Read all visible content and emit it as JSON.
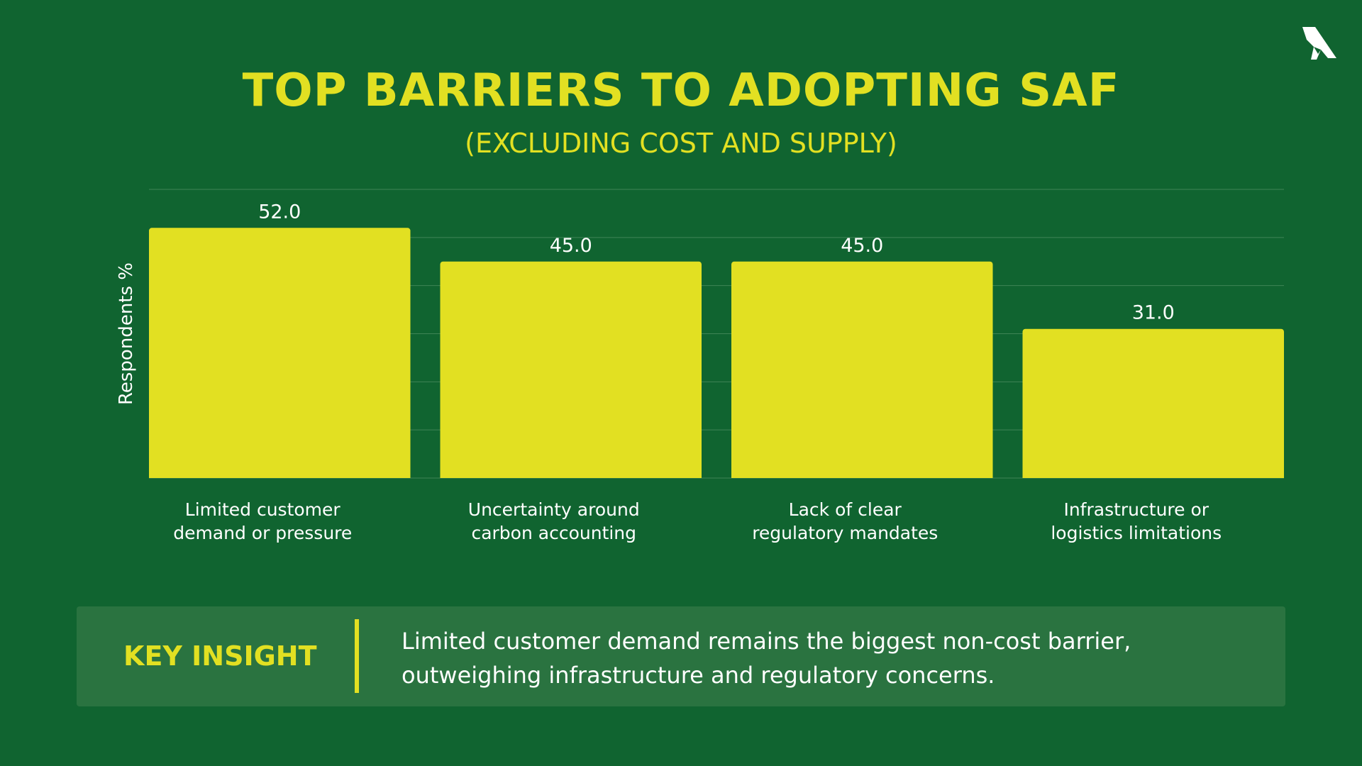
{
  "colors": {
    "background": "#106430",
    "accent": "#e2e022",
    "bar": "#e2e022",
    "gridline": "#3f8456",
    "text": "#ffffff",
    "insight_background": "#2a7340"
  },
  "logo_icon": "airplane-logo-icon",
  "chart_data": {
    "type": "bar",
    "title": "TOP BARRIERS TO ADOPTING SAF",
    "subtitle": "(EXCLUDING COST AND SUPPLY)",
    "xlabel": "",
    "ylabel": "Respondents %",
    "ylim": [
      0,
      60
    ],
    "grid": true,
    "categories": [
      "Limited customer demand or pressure",
      "Uncertainty around carbon accounting",
      "Lack of clear regulatory mandates",
      "Infrastructure or logistics limitations"
    ],
    "category_lines": [
      [
        "Limited customer",
        "demand or pressure"
      ],
      [
        "Uncertainty around",
        "carbon accounting"
      ],
      [
        "Lack of clear",
        "regulatory mandates"
      ],
      [
        "Infrastructure or",
        "logistics limitations"
      ]
    ],
    "values": [
      52.0,
      45.0,
      45.0,
      31.0
    ],
    "data_labels": [
      "52.0",
      "45.0",
      "45.0",
      "31.0"
    ]
  },
  "insight": {
    "label": "KEY INSIGHT",
    "text_line1": "Limited customer demand remains the biggest non-cost barrier,",
    "text_line2": "outweighing infrastructure and regulatory concerns."
  }
}
